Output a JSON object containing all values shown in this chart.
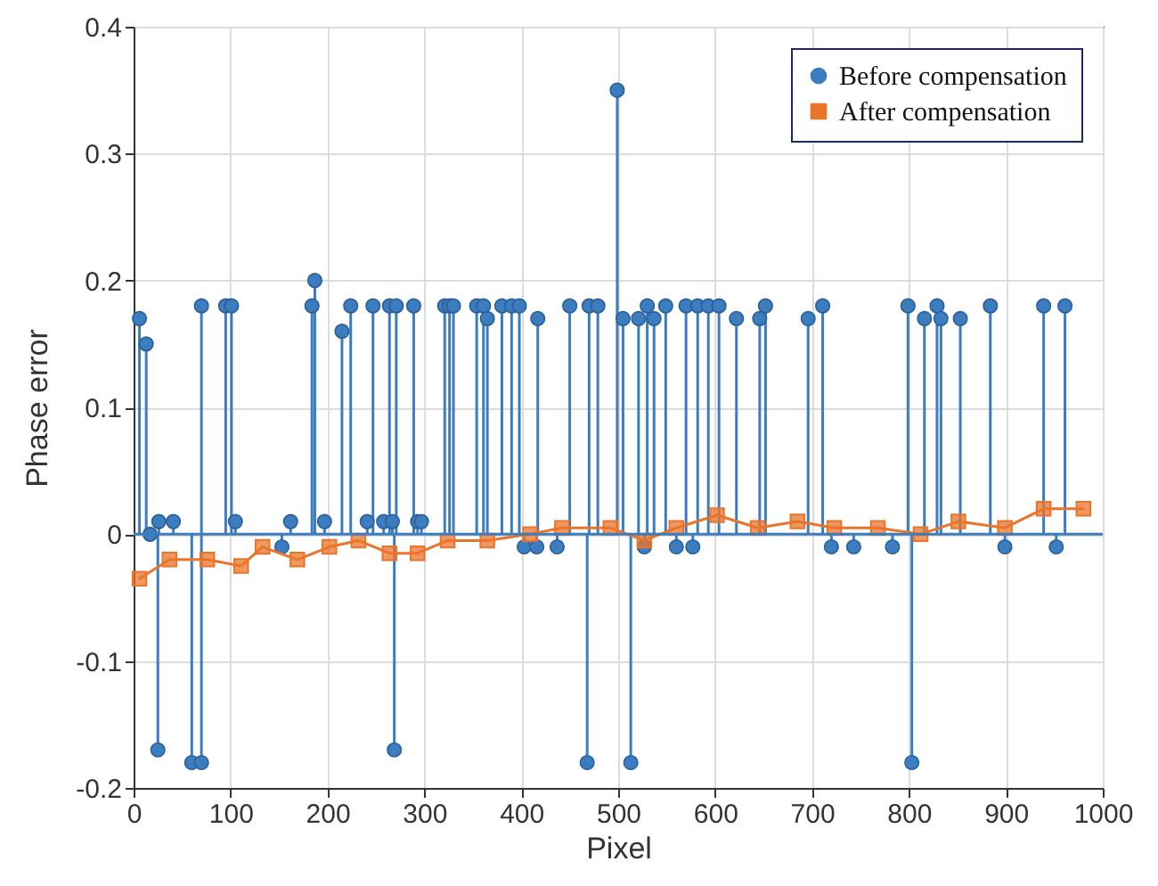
{
  "chart_data": {
    "type": "line",
    "xlabel": "Pixel",
    "ylabel": "Phase error",
    "xlim": [
      0,
      1000
    ],
    "ylim": [
      -0.2,
      0.4
    ],
    "xticks": [
      0,
      100,
      200,
      300,
      400,
      500,
      600,
      700,
      800,
      900,
      1000
    ],
    "yticks": [
      -0.2,
      -0.1,
      0,
      0.1,
      0.2,
      0.3,
      0.4
    ],
    "grid": true,
    "legend": "top right",
    "ref_lines": [
      {
        "axis": "y",
        "value": 0,
        "color": "#3b7dbf"
      }
    ],
    "line_style": "solid",
    "series": [
      {
        "name": "Before compensation",
        "type": "lollipop",
        "marker": "circle",
        "color": "#3b7dbf",
        "x": [
          6,
          13,
          17,
          25,
          26,
          41,
          60,
          70,
          70,
          95,
          101,
          105,
          153,
          162,
          184,
          187,
          197,
          215,
          224,
          241,
          247,
          258,
          264,
          267,
          269,
          271,
          289,
          293,
          297,
          321,
          326,
          330,
          354,
          361,
          365,
          380,
          390,
          398,
          403,
          416,
          417,
          437,
          450,
          468,
          470,
          479,
          499,
          505,
          513,
          521,
          527,
          530,
          537,
          549,
          560,
          570,
          577,
          582,
          593,
          604,
          622,
          646,
          652,
          696,
          711,
          720,
          743,
          783,
          799,
          803,
          816,
          829,
          833,
          853,
          884,
          899,
          939,
          952,
          961
        ],
        "values": [
          0.17,
          0.15,
          0,
          -0.17,
          0.01,
          0.01,
          -0.18,
          0.18,
          -0.18,
          0.18,
          0.18,
          0.01,
          -0.01,
          0.01,
          0.18,
          0.2,
          0.01,
          0.16,
          0.18,
          0.01,
          0.18,
          0.01,
          0.18,
          0.01,
          -0.17,
          0.18,
          0.18,
          0.01,
          0.01,
          0.18,
          0.18,
          0.18,
          0.18,
          0.18,
          0.17,
          0.18,
          0.18,
          0.18,
          -0.01,
          -0.01,
          0.17,
          -0.01,
          0.18,
          -0.18,
          0.18,
          0.18,
          0.35,
          0.17,
          -0.18,
          0.17,
          -0.01,
          0.18,
          0.17,
          0.18,
          -0.01,
          0.18,
          -0.01,
          0.18,
          0.18,
          0.18,
          0.17,
          0.17,
          0.18,
          0.17,
          0.18,
          -0.01,
          -0.01,
          -0.01,
          0.18,
          -0.18,
          0.17,
          0.18,
          0.17,
          0.17,
          0.18,
          -0.01,
          0.18,
          -0.01,
          0.18
        ]
      },
      {
        "name": "After compensation",
        "type": "line",
        "marker": "square",
        "color": "#e9742b",
        "x": [
          6,
          37,
          76,
          111,
          133,
          169,
          202,
          232,
          264,
          293,
          324,
          365,
          409,
          442,
          492,
          527,
          560,
          602,
          644,
          685,
          723,
          768,
          812,
          851,
          899,
          939,
          980
        ],
        "values": [
          -0.035,
          -0.02,
          -0.02,
          -0.025,
          -0.01,
          -0.02,
          -0.01,
          -0.005,
          -0.015,
          -0.015,
          -0.005,
          -0.005,
          0,
          0.005,
          0.005,
          -0.005,
          0.005,
          0.015,
          0.005,
          0.01,
          0.005,
          0.005,
          0,
          0.01,
          0.005,
          0.02,
          0.02
        ]
      }
    ]
  }
}
